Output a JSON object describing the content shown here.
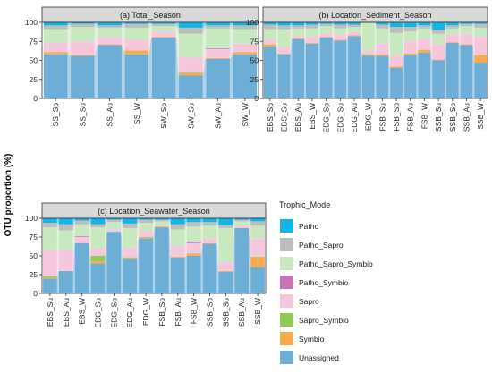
{
  "colors": {
    "Patho": "#12b5e6",
    "Patho_Sapro": "#bdbdbd",
    "Patho_Sapro_Symbio": "#c8e8c0",
    "Patho_Symbio": "#c674b4",
    "Sapro": "#f6c6dc",
    "Sapro_Symbio": "#90cb57",
    "Symbio": "#f6ab4c",
    "Unassigned": "#6caed6"
  },
  "chart_data": [
    {
      "type": "bar",
      "stacked": true,
      "title": "(a)  Total_Season",
      "ylim": [
        0,
        100
      ],
      "yticks": [
        0,
        25,
        50,
        75,
        100
      ],
      "categories": [
        "SS_Sp",
        "SS_Su",
        "SS_Au",
        "SS_W",
        "SW_Sp",
        "SW_Su",
        "SW_Au",
        "SW_W"
      ],
      "series": [
        {
          "name": "Unassigned",
          "values": [
            58,
            56,
            70,
            58,
            80,
            30,
            52,
            58
          ]
        },
        {
          "name": "Symbio",
          "values": [
            3,
            1,
            1,
            5,
            1,
            3,
            1,
            3
          ]
        },
        {
          "name": "Sapro_Symbio",
          "values": [
            0,
            0,
            0,
            0,
            0,
            1,
            0,
            0
          ]
        },
        {
          "name": "Sapro",
          "values": [
            12,
            18,
            9,
            14,
            7,
            20,
            12,
            11
          ]
        },
        {
          "name": "Patho_Symbio",
          "values": [
            0,
            0,
            0,
            0,
            0,
            0,
            1,
            0
          ]
        },
        {
          "name": "Patho_Sapro_Symbio",
          "values": [
            18,
            19,
            13,
            16,
            7,
            31,
            26,
            19
          ]
        },
        {
          "name": "Patho_Sapro",
          "values": [
            5,
            4,
            3,
            5,
            3,
            8,
            4,
            5
          ]
        },
        {
          "name": "Patho",
          "values": [
            4,
            2,
            4,
            2,
            2,
            7,
            4,
            4
          ]
        }
      ]
    },
    {
      "type": "bar",
      "stacked": true,
      "title": "(b)  Location_Sediment_Season",
      "ylim": [
        0,
        100
      ],
      "yticks": [
        0,
        25,
        50,
        75,
        100
      ],
      "categories": [
        "EBS_Sp",
        "EBS_Su",
        "EBS_Au",
        "EBS_W",
        "EDG_Sp",
        "EDG_Su",
        "EDG_Au",
        "EDG_W",
        "FSB_Su",
        "FSB_Sp",
        "FSB_Au",
        "FSB_W",
        "SSB_Su",
        "SSB_Sp",
        "SSB_Au",
        "SSB_W"
      ],
      "series": [
        {
          "name": "Unassigned",
          "values": [
            68,
            58,
            78,
            72,
            80,
            76,
            82,
            56,
            56,
            40,
            57,
            60,
            50,
            73,
            70,
            47
          ]
        },
        {
          "name": "Symbio",
          "values": [
            3,
            1,
            1,
            1,
            1,
            1,
            1,
            1,
            2,
            2,
            2,
            4,
            1,
            1,
            1,
            10
          ]
        },
        {
          "name": "Sapro_Symbio",
          "values": [
            0,
            0,
            0,
            0,
            0,
            0,
            0,
            1,
            0,
            0,
            0,
            0,
            0,
            0,
            0,
            0
          ]
        },
        {
          "name": "Sapro",
          "values": [
            6,
            8,
            4,
            8,
            5,
            7,
            4,
            5,
            14,
            14,
            16,
            14,
            20,
            10,
            14,
            24
          ]
        },
        {
          "name": "Patho_Symbio",
          "values": [
            0,
            0,
            0,
            0,
            0,
            0,
            0,
            0,
            0,
            0,
            0,
            0,
            0,
            0,
            0,
            0
          ]
        },
        {
          "name": "Patho_Sapro_Symbio",
          "values": [
            14,
            24,
            9,
            11,
            9,
            8,
            7,
            36,
            20,
            30,
            13,
            14,
            14,
            8,
            10,
            12
          ]
        },
        {
          "name": "Patho_Sapro",
          "values": [
            6,
            5,
            4,
            5,
            3,
            5,
            3,
            1,
            5,
            8,
            6,
            4,
            5,
            4,
            3,
            5
          ]
        },
        {
          "name": "Patho",
          "values": [
            3,
            4,
            4,
            3,
            2,
            3,
            3,
            0,
            3,
            6,
            6,
            4,
            10,
            4,
            2,
            2
          ]
        }
      ]
    },
    {
      "type": "bar",
      "stacked": true,
      "title": "(c)  Location_Seawater_Season",
      "ylim": [
        0,
        100
      ],
      "yticks": [
        0,
        25,
        50,
        75,
        100
      ],
      "categories": [
        "EBS_Su",
        "EBS_Au",
        "EBS_W",
        "EDG_Su",
        "EDG_Sp",
        "EDG_Au",
        "EDG_W",
        "FSB_Sp",
        "FSB_Au",
        "FSB_W",
        "SSB_Sp",
        "SSB_Su",
        "SSB_Au",
        "SSB_W"
      ],
      "series": [
        {
          "name": "Unassigned",
          "values": [
            20,
            30,
            67,
            40,
            82,
            46,
            73,
            88,
            48,
            50,
            66,
            29,
            87,
            35
          ]
        },
        {
          "name": "Symbio",
          "values": [
            1,
            0,
            0,
            3,
            0,
            1,
            1,
            1,
            1,
            2,
            1,
            1,
            0,
            13
          ]
        },
        {
          "name": "Sapro_Symbio",
          "values": [
            2,
            0,
            0,
            7,
            0,
            1,
            1,
            0,
            0,
            1,
            0,
            0,
            0,
            1
          ]
        },
        {
          "name": "Sapro",
          "values": [
            35,
            28,
            8,
            10,
            3,
            12,
            9,
            1,
            14,
            14,
            6,
            11,
            3,
            24
          ]
        },
        {
          "name": "Patho_Symbio",
          "values": [
            0,
            0,
            1,
            0,
            0,
            0,
            0,
            0,
            0,
            2,
            0,
            0,
            0,
            0
          ]
        },
        {
          "name": "Patho_Sapro_Symbio",
          "values": [
            30,
            26,
            16,
            28,
            10,
            27,
            10,
            6,
            22,
            20,
            17,
            46,
            6,
            17
          ]
        },
        {
          "name": "Patho_Sapro",
          "values": [
            6,
            8,
            5,
            4,
            3,
            6,
            4,
            2,
            7,
            6,
            5,
            4,
            2,
            6
          ]
        },
        {
          "name": "Patho",
          "values": [
            6,
            8,
            3,
            8,
            2,
            7,
            2,
            2,
            8,
            5,
            5,
            9,
            2,
            4
          ]
        }
      ]
    }
  ],
  "ylabel": "OTU proportion (%)",
  "legend": {
    "title": "Trophic_Mode",
    "items": [
      "Patho",
      "Patho_Sapro",
      "Patho_Sapro_Symbio",
      "Patho_Symbio",
      "Sapro",
      "Sapro_Symbio",
      "Symbio",
      "Unassigned"
    ]
  }
}
